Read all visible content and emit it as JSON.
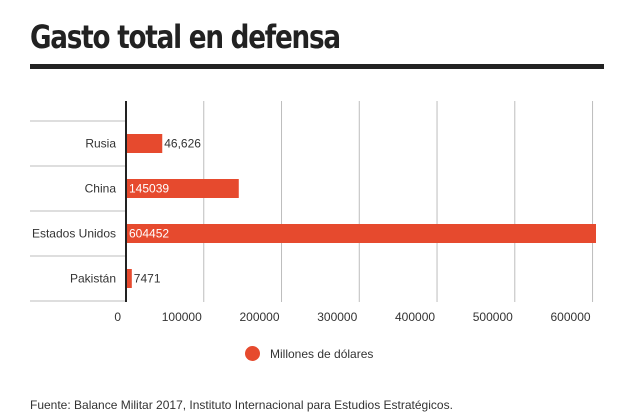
{
  "title": "Gasto total en defensa",
  "chart_data": {
    "type": "bar",
    "orientation": "horizontal",
    "categories": [
      "Rusia",
      "China",
      "Estados Unidos",
      "Pakistán"
    ],
    "values": [
      46626,
      145039,
      604452,
      7471
    ],
    "data_labels": [
      "46,626",
      "145039",
      "604452",
      "7471"
    ],
    "x_ticks": [
      0,
      100000,
      200000,
      300000,
      400000,
      500000,
      600000
    ],
    "xlim": [
      0,
      604452
    ],
    "grid": true,
    "bar_color": "#e64a2e",
    "legend": {
      "label": "Millones de dólares",
      "position": "bottom"
    }
  },
  "source": "Fuente: Balance Militar 2017, Instituto Internacional para Estudios Estratégicos."
}
